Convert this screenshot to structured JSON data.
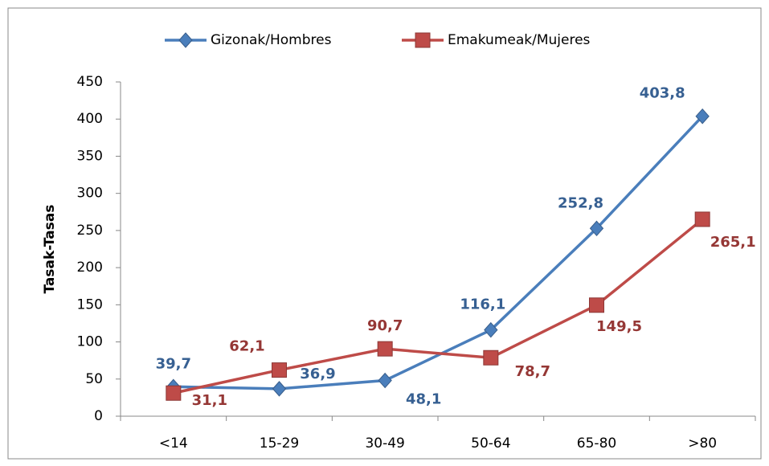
{
  "chart_data": {
    "type": "line",
    "ylabel": "Tasak-Tasas",
    "categories": [
      "<14",
      "15-29",
      "30-49",
      "50-64",
      "65-80",
      ">80"
    ],
    "series": [
      {
        "name": "Gizonak/Hombres",
        "color": "#4a7ebb",
        "marker": "diamond",
        "values": [
          39.7,
          36.9,
          48.1,
          116.1,
          252.8,
          403.8
        ],
        "value_labels": [
          "39,7",
          "36,9",
          "48,1",
          "116,1",
          "252,8",
          "403,8"
        ]
      },
      {
        "name": "Emakumeak/Mujeres",
        "color": "#be4b48",
        "marker": "square",
        "values": [
          31.1,
          62.1,
          90.7,
          78.7,
          149.5,
          265.1
        ],
        "value_labels": [
          "31,1",
          "62,1",
          "90,7",
          "78,7",
          "149,5",
          "265,1"
        ]
      }
    ],
    "ylim": [
      0,
      450
    ],
    "yticks": [
      0,
      50,
      100,
      150,
      200,
      250,
      300,
      350,
      400,
      450
    ],
    "grid": false,
    "legend": "top"
  }
}
